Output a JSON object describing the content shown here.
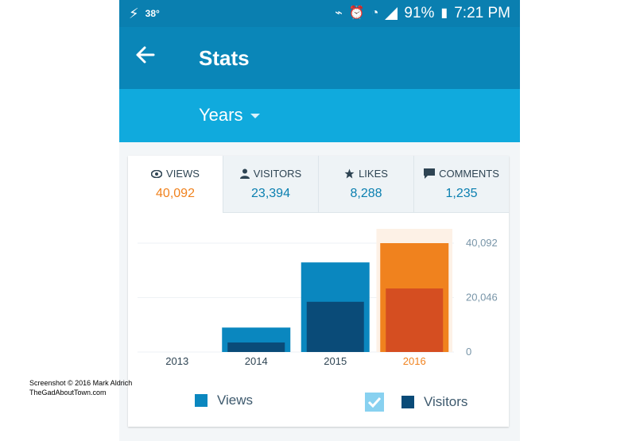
{
  "status_bar": {
    "temperature": "38°",
    "battery": "91%",
    "time": "7:21 PM"
  },
  "app_bar": {
    "back_icon": "arrow-left-icon",
    "title": "Stats"
  },
  "period_selector": {
    "label": "Years"
  },
  "tabs": [
    {
      "label": "VIEWS",
      "value": "40,092",
      "icon": "eye-icon",
      "active": true
    },
    {
      "label": "VISITORS",
      "value": "23,394",
      "icon": "person-icon",
      "active": false
    },
    {
      "label": "LIKES",
      "value": "8,288",
      "icon": "star-icon",
      "active": false
    },
    {
      "label": "COMMENTS",
      "value": "1,235",
      "icon": "comment-icon",
      "active": false
    }
  ],
  "chart_data": {
    "type": "bar",
    "categories": [
      "2013",
      "2014",
      "2015",
      "2016"
    ],
    "series": [
      {
        "name": "Views",
        "values": [
          0,
          9000,
          33000,
          40092
        ]
      },
      {
        "name": "Visitors",
        "values": [
          0,
          3500,
          18500,
          23394
        ]
      }
    ],
    "y_tick_labels": [
      "40,092",
      "20,046",
      "0"
    ],
    "ylim": [
      0,
      40092
    ],
    "highlighted_category": "2016",
    "grid": true,
    "colors": {
      "views": "#0a87bf",
      "visitors": "#0a4b78",
      "views_highlight": "#f0821e",
      "visitors_highlight": "#d54e21",
      "highlight_bg": "#fdf1e6"
    }
  },
  "legend": {
    "views_label": "Views",
    "visitors_label": "Visitors",
    "visitors_checked": true
  },
  "watermark": {
    "line1": "Screenshot © 2016 Mark Aldrich",
    "line2": "TheGadAboutTown.com"
  }
}
